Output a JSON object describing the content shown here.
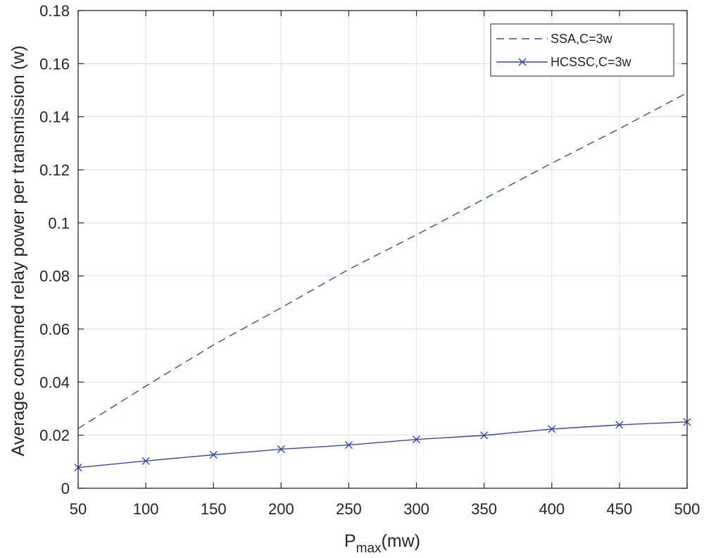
{
  "chart_data": {
    "type": "line",
    "title": "",
    "xlabel_main": "P",
    "xlabel_sub": "max",
    "xlabel_unit": "(mw)",
    "ylabel": "Average consumed relay power per transmission (w)",
    "xlim": [
      50,
      500
    ],
    "ylim": [
      0,
      0.18
    ],
    "grid": true,
    "legend_position": "top-right",
    "x": [
      50,
      100,
      150,
      200,
      250,
      300,
      350,
      400,
      450,
      500
    ],
    "x_tick_labels": [
      "50",
      "100",
      "150",
      "200",
      "250",
      "300",
      "350",
      "400",
      "450",
      "500"
    ],
    "y_ticks": [
      0,
      0.02,
      0.04,
      0.06,
      0.08,
      0.1,
      0.12,
      0.14,
      0.16,
      0.18
    ],
    "y_tick_labels": [
      "0",
      "0.02",
      "0.04",
      "0.06",
      "0.08",
      "0.1",
      "0.12",
      "0.14",
      "0.16",
      "0.18"
    ],
    "series": [
      {
        "name": "SSA,C=3w",
        "style": "dashed",
        "marker": "none",
        "color": "#3a4a9c",
        "values": [
          0.0225,
          0.0385,
          0.054,
          0.068,
          0.0825,
          0.0955,
          0.109,
          0.1225,
          0.1355,
          0.149
        ]
      },
      {
        "name": "HCSSC,C=3w",
        "style": "solid",
        "marker": "x",
        "color": "#3a4a9c",
        "values": [
          0.0078,
          0.0103,
          0.0126,
          0.0147,
          0.0163,
          0.0184,
          0.0199,
          0.0223,
          0.0239,
          0.025
        ]
      }
    ]
  }
}
